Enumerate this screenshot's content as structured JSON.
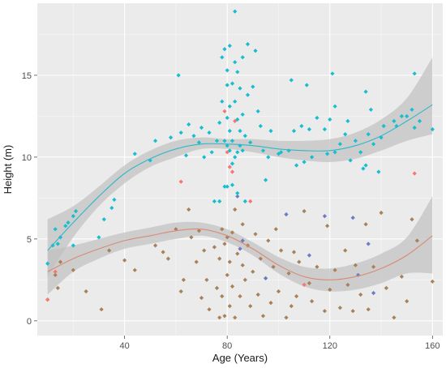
{
  "chart_data": {
    "type": "scatter",
    "title": "",
    "xlabel": "Age (Years)",
    "ylabel": "Height (m)",
    "xlim": [
      6,
      164
    ],
    "ylim": [
      -0.9,
      19.4
    ],
    "x_ticks": [
      40,
      80,
      120,
      160
    ],
    "y_ticks": [
      0,
      5,
      10,
      15
    ],
    "grid": true,
    "legend": "none",
    "background_color": "#ebebeb",
    "grid_color": "#ffffff",
    "ribbon_color": "#c0c0c0",
    "series": [
      {
        "group": "tall",
        "color": "#17becf",
        "points": [
          [
            10,
            3.5
          ],
          [
            12,
            4.6
          ],
          [
            13,
            5.6
          ],
          [
            14,
            4.7
          ],
          [
            15,
            5.1
          ],
          [
            17,
            5.8
          ],
          [
            18,
            6.0
          ],
          [
            20,
            6.4
          ],
          [
            20,
            4.6
          ],
          [
            21,
            6.7
          ],
          [
            30,
            5.1
          ],
          [
            32,
            6.2
          ],
          [
            36,
            7.4
          ],
          [
            35,
            6.9
          ],
          [
            44,
            10.2
          ],
          [
            50,
            9.8
          ],
          [
            52,
            11.0
          ],
          [
            58,
            11.2
          ],
          [
            61,
            15.0
          ],
          [
            62,
            11.5
          ],
          [
            64,
            10.1
          ],
          [
            65,
            12.0
          ],
          [
            67,
            11.3
          ],
          [
            69,
            10.9
          ],
          [
            70,
            11.8
          ],
          [
            71,
            10.0
          ],
          [
            73,
            11.5
          ],
          [
            74,
            10.3
          ],
          [
            75,
            7.3
          ],
          [
            76,
            11.0
          ],
          [
            77,
            12.1
          ],
          [
            77,
            7.3
          ],
          [
            78,
            13.4
          ],
          [
            78,
            16.1
          ],
          [
            79,
            16.6
          ],
          [
            79,
            11.0
          ],
          [
            79,
            8.2
          ],
          [
            80,
            15.3
          ],
          [
            80,
            14.4
          ],
          [
            80,
            12.4
          ],
          [
            80,
            10.7
          ],
          [
            80,
            8.2
          ],
          [
            81,
            16.8
          ],
          [
            81,
            13.1
          ],
          [
            81,
            11.6
          ],
          [
            81,
            10.4
          ],
          [
            82,
            14.5
          ],
          [
            82,
            11.0
          ],
          [
            82,
            9.6
          ],
          [
            82,
            8.3
          ],
          [
            83,
            18.9
          ],
          [
            83,
            15.8
          ],
          [
            83,
            13.4
          ],
          [
            83,
            10.0
          ],
          [
            84,
            15.2
          ],
          [
            84,
            12.3
          ],
          [
            84,
            10.3
          ],
          [
            84,
            7.8
          ],
          [
            85,
            14.2
          ],
          [
            85,
            11.6
          ],
          [
            85,
            10.7
          ],
          [
            86,
            16.1
          ],
          [
            86,
            12.6
          ],
          [
            86,
            10.4
          ],
          [
            87,
            11.3
          ],
          [
            87,
            7.3
          ],
          [
            88,
            16.9
          ],
          [
            88,
            13.8
          ],
          [
            89,
            10.9
          ],
          [
            90,
            14.3
          ],
          [
            91,
            16.5
          ],
          [
            92,
            12.8
          ],
          [
            93,
            11.9
          ],
          [
            94,
            10.4
          ],
          [
            95,
            8.6
          ],
          [
            96,
            10.0
          ],
          [
            97,
            11.6
          ],
          [
            100,
            10.2
          ],
          [
            101,
            10.3
          ],
          [
            104,
            10.4
          ],
          [
            105,
            14.7
          ],
          [
            106,
            11.6
          ],
          [
            107,
            9.5
          ],
          [
            109,
            11.9
          ],
          [
            110,
            9.7
          ],
          [
            111,
            14.4
          ],
          [
            112,
            11.7
          ],
          [
            113,
            10.0
          ],
          [
            115,
            12.4
          ],
          [
            118,
            11.7
          ],
          [
            119,
            10.2
          ],
          [
            120,
            12.3
          ],
          [
            121,
            15.1
          ],
          [
            122,
            10.3
          ],
          [
            122,
            13.1
          ],
          [
            124,
            10.8
          ],
          [
            126,
            11.4
          ],
          [
            127,
            12.2
          ],
          [
            128,
            9.8
          ],
          [
            130,
            11.0
          ],
          [
            132,
            10.3
          ],
          [
            133,
            9.3
          ],
          [
            134,
            9.5
          ],
          [
            134,
            14.0
          ],
          [
            135,
            11.4
          ],
          [
            136,
            12.9
          ],
          [
            137,
            10.8
          ],
          [
            139,
            9.1
          ],
          [
            140,
            11.2
          ],
          [
            141,
            11.9
          ],
          [
            145,
            12.2
          ],
          [
            146,
            11.9
          ],
          [
            148,
            12.5
          ],
          [
            150,
            12.5
          ],
          [
            152,
            12.9
          ],
          [
            153,
            15.1
          ],
          [
            153,
            11.8
          ],
          [
            155,
            12.2
          ],
          [
            160,
            11.7
          ]
        ]
      },
      {
        "group": "red",
        "color": "#f8766d",
        "points": [
          [
            10,
            1.3
          ],
          [
            13,
            3.0
          ],
          [
            62,
            8.5
          ],
          [
            79,
            12.8
          ],
          [
            80,
            10.3
          ],
          [
            81,
            9.4
          ],
          [
            82,
            9.1
          ],
          [
            83,
            12.2
          ],
          [
            89,
            7.3
          ],
          [
            110,
            2.2
          ],
          [
            153,
            9.0
          ]
        ]
      },
      {
        "group": "blue",
        "color": "#6b7bc4",
        "points": [
          [
            84,
            7.6
          ],
          [
            85,
            4.4
          ],
          [
            86,
            4.9
          ],
          [
            95,
            2.6
          ],
          [
            103,
            6.5
          ],
          [
            112,
            4.0
          ],
          [
            118,
            6.4
          ],
          [
            129,
            6.3
          ],
          [
            131,
            2.8
          ],
          [
            135,
            4.7
          ],
          [
            137,
            1.7
          ]
        ]
      },
      {
        "group": "short",
        "color": "#a8815a",
        "points": [
          [
            10,
            1.3
          ],
          [
            13,
            2.8
          ],
          [
            14,
            2.0
          ],
          [
            15,
            3.6
          ],
          [
            20,
            3.1
          ],
          [
            25,
            1.8
          ],
          [
            31,
            0.7
          ],
          [
            34,
            4.3
          ],
          [
            40,
            3.7
          ],
          [
            44,
            3.1
          ],
          [
            52,
            4.6
          ],
          [
            55,
            4.2
          ],
          [
            57,
            3.8
          ],
          [
            60,
            5.6
          ],
          [
            62,
            1.8
          ],
          [
            63,
            2.5
          ],
          [
            65,
            6.8
          ],
          [
            66,
            5.1
          ],
          [
            68,
            3.6
          ],
          [
            69,
            5.5
          ],
          [
            70,
            1.4
          ],
          [
            71,
            4.3
          ],
          [
            72,
            2.5
          ],
          [
            73,
            0.7
          ],
          [
            75,
            4.5
          ],
          [
            76,
            2.0
          ],
          [
            77,
            0.2
          ],
          [
            77,
            3.8
          ],
          [
            78,
            1.5
          ],
          [
            78,
            5.6
          ],
          [
            79,
            0.3
          ],
          [
            79,
            4.7
          ],
          [
            80,
            2.8
          ],
          [
            80,
            5.1
          ],
          [
            81,
            0.9
          ],
          [
            81,
            3.6
          ],
          [
            82,
            5.4
          ],
          [
            82,
            2.1
          ],
          [
            83,
            6.8
          ],
          [
            83,
            0.2
          ],
          [
            84,
            4.1
          ],
          [
            85,
            1.5
          ],
          [
            86,
            3.4
          ],
          [
            86,
            5.9
          ],
          [
            87,
            2.5
          ],
          [
            88,
            4.6
          ],
          [
            89,
            0.9
          ],
          [
            90,
            3.0
          ],
          [
            91,
            5.3
          ],
          [
            92,
            1.6
          ],
          [
            93,
            3.8
          ],
          [
            94,
            0.3
          ],
          [
            95,
            2.6
          ],
          [
            96,
            4.9
          ],
          [
            97,
            1.1
          ],
          [
            98,
            3.3
          ],
          [
            99,
            5.6
          ],
          [
            100,
            1.8
          ],
          [
            101,
            4.3
          ],
          [
            103,
            0.2
          ],
          [
            104,
            2.9
          ],
          [
            105,
            0.9
          ],
          [
            106,
            4.2
          ],
          [
            107,
            1.5
          ],
          [
            108,
            3.6
          ],
          [
            110,
            6.7
          ],
          [
            112,
            2.3
          ],
          [
            113,
            1.2
          ],
          [
            115,
            3.3
          ],
          [
            118,
            0.6
          ],
          [
            119,
            5.8
          ],
          [
            120,
            1.9
          ],
          [
            122,
            3.1
          ],
          [
            124,
            0.8
          ],
          [
            126,
            4.3
          ],
          [
            127,
            2.2
          ],
          [
            129,
            0.6
          ],
          [
            130,
            3.4
          ],
          [
            132,
            1.6
          ],
          [
            134,
            5.9
          ],
          [
            135,
            0.7
          ],
          [
            137,
            3.3
          ],
          [
            140,
            6.6
          ],
          [
            142,
            2.0
          ],
          [
            145,
            0.2
          ],
          [
            148,
            2.7
          ],
          [
            150,
            1.2
          ],
          [
            152,
            6.2
          ],
          [
            154,
            4.9
          ],
          [
            160,
            2.4
          ]
        ]
      }
    ],
    "smooths": [
      {
        "group": "tall",
        "line_color": "#2fb8c8",
        "x": [
          10,
          20,
          30,
          40,
          50,
          60,
          70,
          80,
          90,
          100,
          110,
          120,
          130,
          140,
          150,
          160
        ],
        "fit": [
          4.3,
          6.0,
          7.6,
          9.0,
          9.9,
          10.5,
          10.8,
          10.8,
          10.7,
          10.5,
          10.4,
          10.4,
          10.7,
          11.3,
          12.2,
          13.2
        ],
        "lower": [
          2.7,
          5.1,
          7.0,
          8.4,
          9.4,
          10.0,
          10.5,
          10.5,
          10.3,
          10.0,
          9.8,
          9.7,
          9.9,
          10.4,
          11.0,
          11.4
        ],
        "upper": [
          6.2,
          7.0,
          8.2,
          9.5,
          10.4,
          11.0,
          11.2,
          11.1,
          11.1,
          11.0,
          11.0,
          11.1,
          11.5,
          12.3,
          13.6,
          16.1
        ]
      },
      {
        "group": "short",
        "line_color": "#d98a73",
        "x": [
          10,
          20,
          30,
          40,
          50,
          60,
          70,
          80,
          90,
          100,
          110,
          120,
          130,
          140,
          150,
          160
        ],
        "fit": [
          3.0,
          3.8,
          4.4,
          4.9,
          5.2,
          5.5,
          5.6,
          5.2,
          4.4,
          3.4,
          2.7,
          2.5,
          2.7,
          3.2,
          4.0,
          5.2
        ],
        "lower": [
          1.6,
          3.0,
          3.8,
          4.4,
          4.7,
          5.0,
          5.2,
          4.8,
          4.0,
          2.9,
          2.1,
          1.8,
          1.9,
          2.3,
          2.9,
          2.9
        ],
        "upper": [
          4.3,
          4.6,
          5.0,
          5.4,
          5.7,
          6.0,
          6.0,
          5.6,
          4.8,
          3.9,
          3.3,
          3.2,
          3.5,
          4.1,
          5.1,
          7.6
        ]
      }
    ]
  }
}
